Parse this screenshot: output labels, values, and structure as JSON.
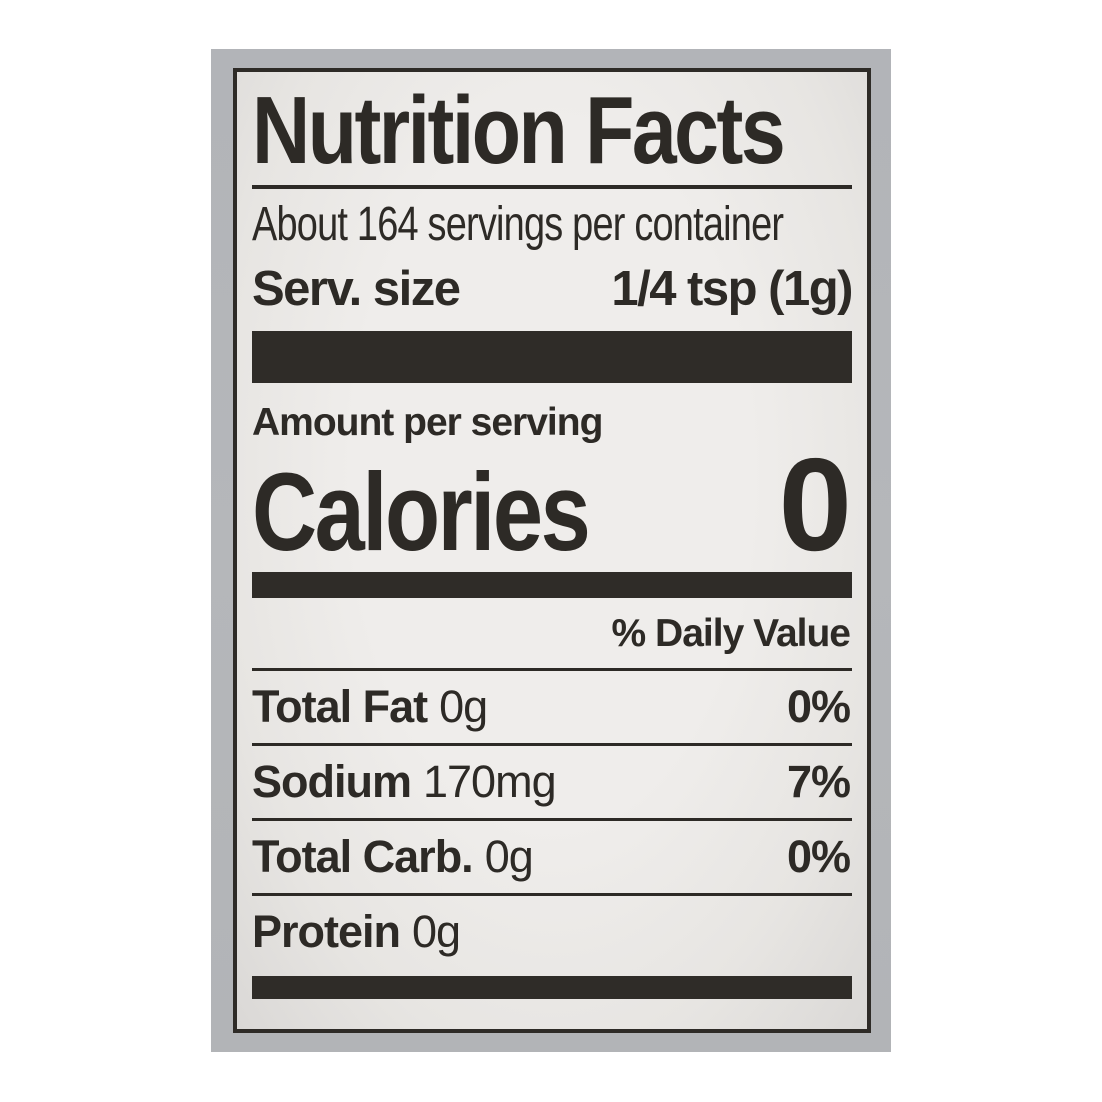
{
  "label": {
    "title": "Nutrition Facts",
    "servings_per_container": "About 164 servings per container",
    "serving_size": {
      "label": "Serv. size",
      "value": "1/4 tsp (1g)"
    },
    "amount_per_serving": "Amount per serving",
    "calories": {
      "label": "Calories",
      "value": "0"
    },
    "daily_value_header": "% Daily Value",
    "nutrients": [
      {
        "name": "Total Fat",
        "amount": "0g",
        "daily_value": "0%"
      },
      {
        "name": "Sodium",
        "amount": "170mg",
        "daily_value": "7%"
      },
      {
        "name": "Total Carb.",
        "amount": "0g",
        "daily_value": "0%"
      },
      {
        "name": "Protein",
        "amount": "0g",
        "daily_value": ""
      }
    ]
  },
  "colors": {
    "photo_background": "#b4b6b9",
    "paper": "#eceae7",
    "ink": "#2d2a26"
  }
}
